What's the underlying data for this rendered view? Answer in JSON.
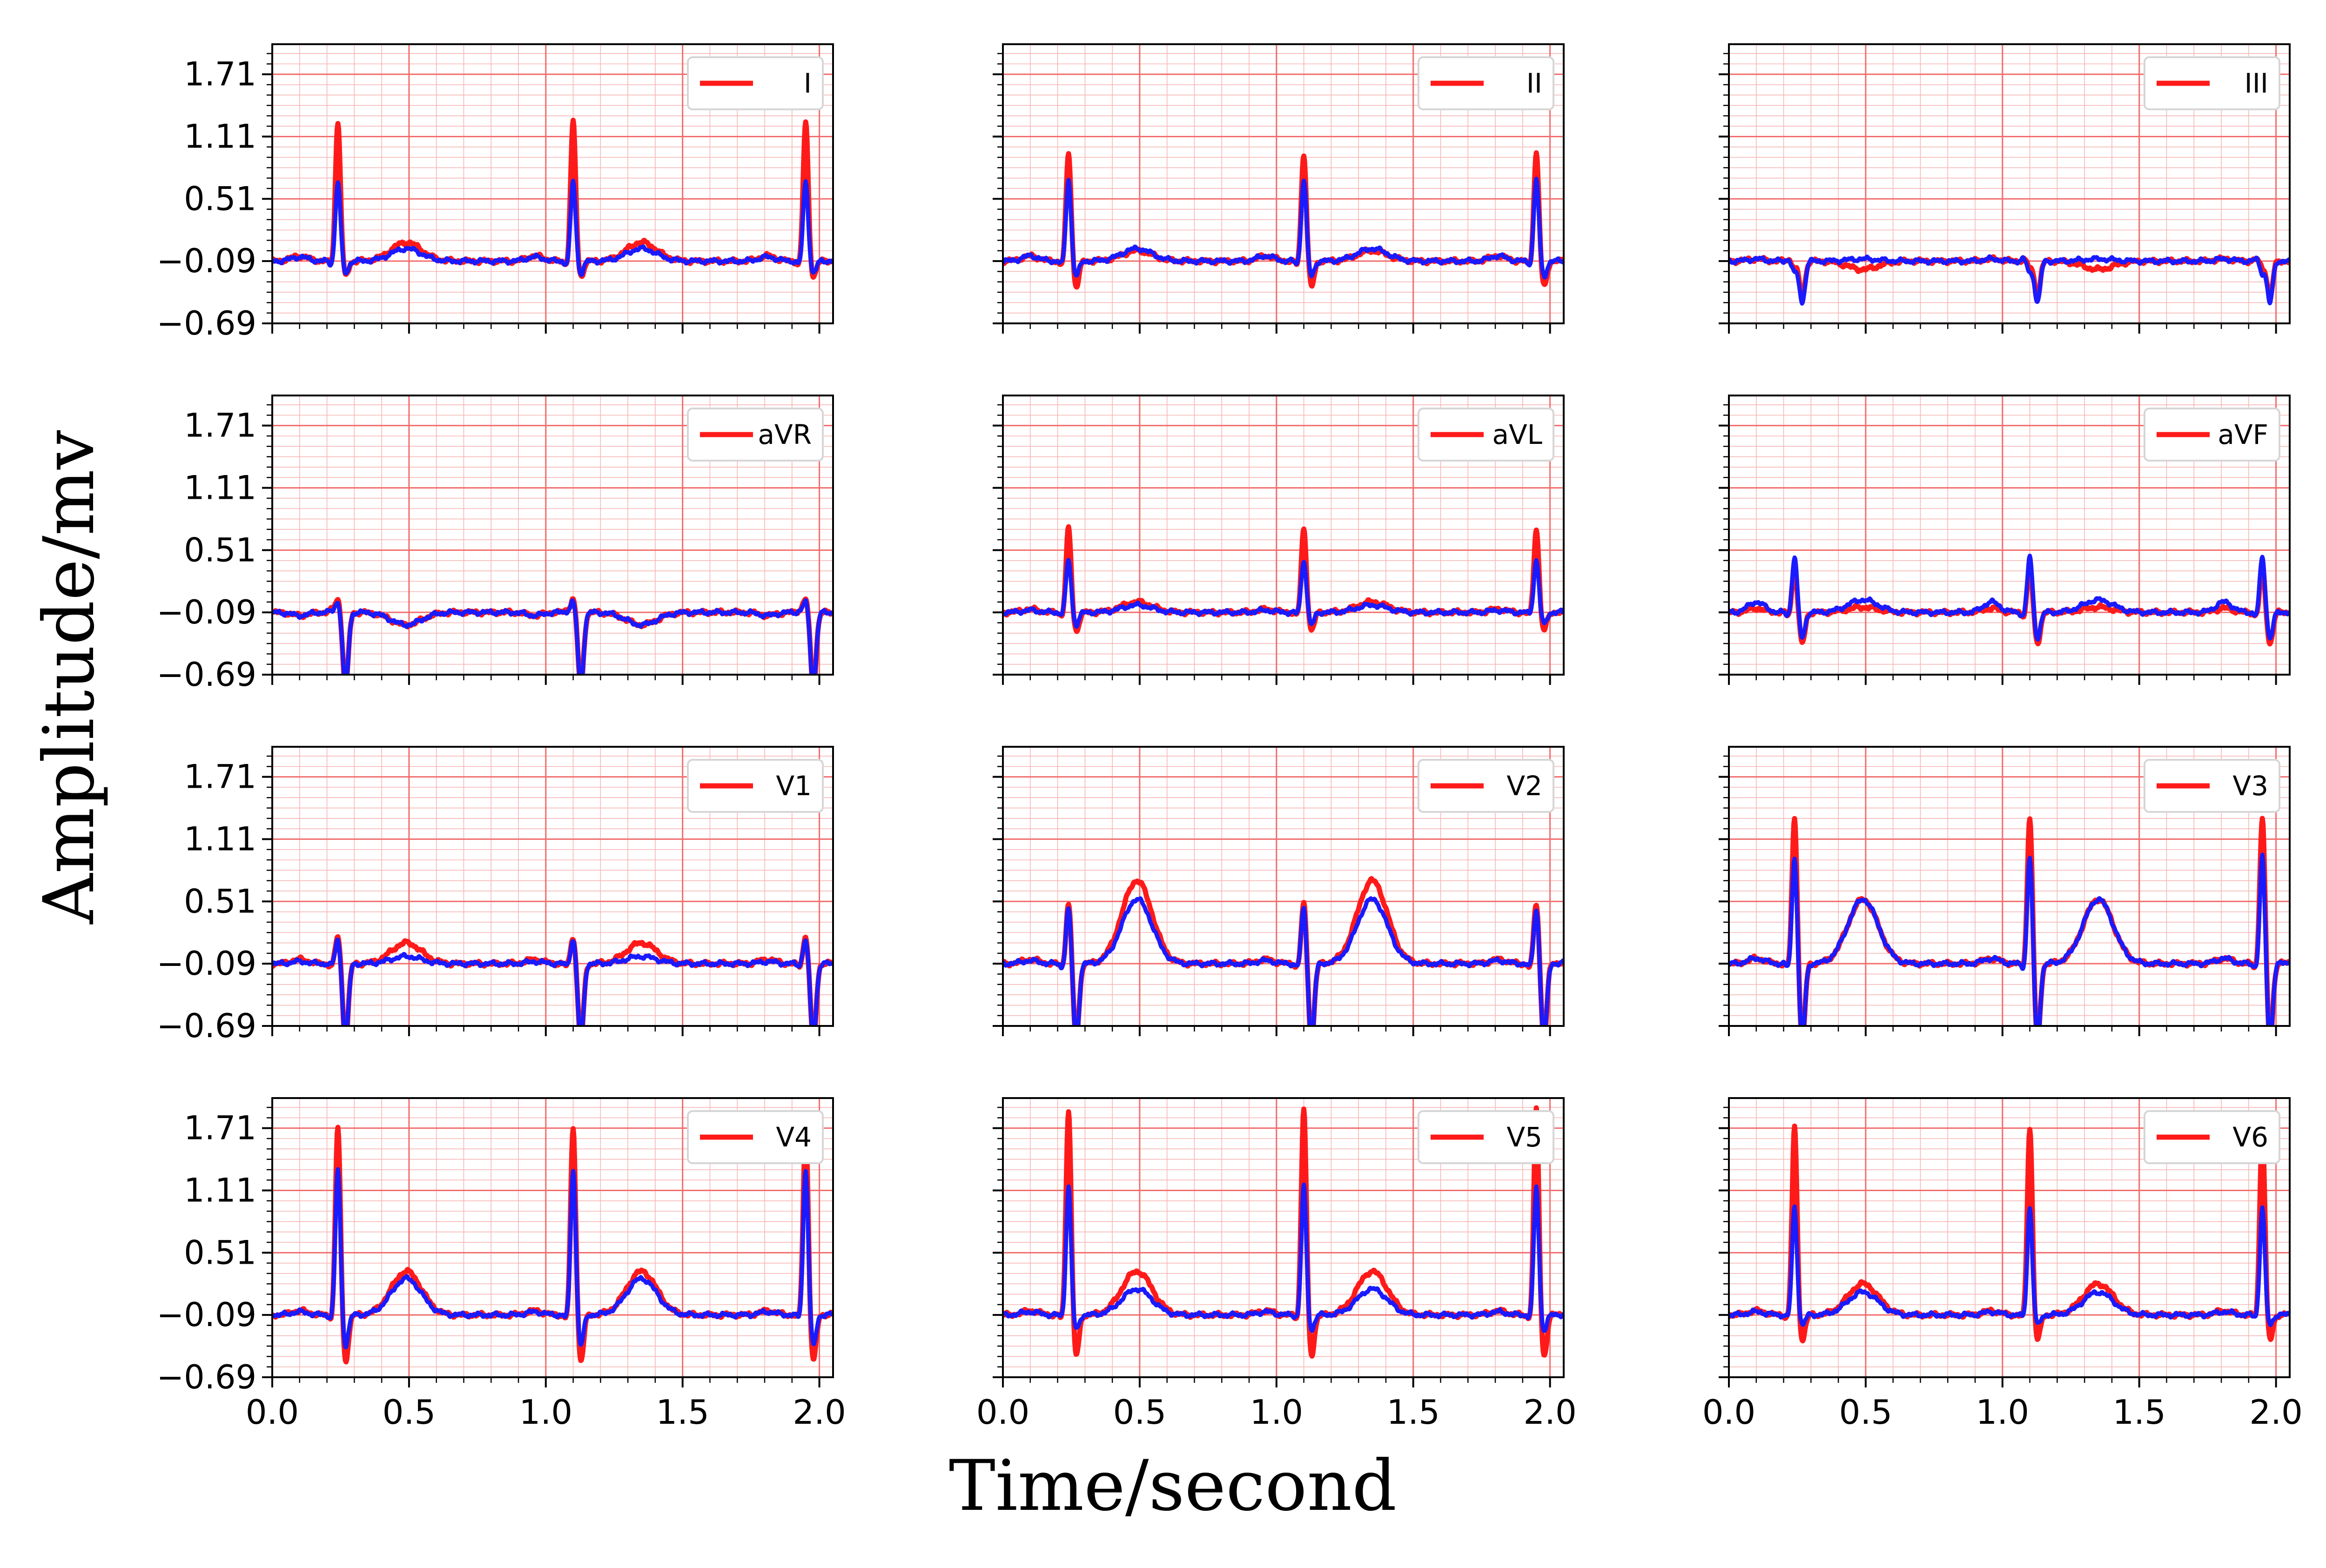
{
  "colors": {
    "reference": "#ff1a1a",
    "reconstruction": "#1a1aff",
    "grid_major": "#f26d6d",
    "grid_minor": "#f7b6b6"
  },
  "labels": {
    "xlabel": "Time/second",
    "ylabel": "Amplitude/mv"
  },
  "chart_data": {
    "type": "line",
    "layout": "4x3 small multiples",
    "xlim": [
      0,
      2.05
    ],
    "ylim": [
      -0.69,
      2.0
    ],
    "xticks": [
      0.0,
      0.5,
      1.0,
      1.5,
      2.0
    ],
    "xtick_labels": [
      "0.0",
      "0.5",
      "1.0",
      "1.5",
      "2.0"
    ],
    "yticks": [
      -0.69,
      -0.09,
      0.51,
      1.11,
      1.71
    ],
    "ytick_labels": [
      "−0.69",
      "−0.09",
      "0.51",
      "1.11",
      "1.71"
    ],
    "beat_times": [
      0.24,
      1.1,
      1.95
    ],
    "xlabel": "Time/second",
    "ylabel": "Amplitude/mv",
    "grid": true,
    "legend_placement": "upper right",
    "panels": [
      {
        "lead": "I",
        "legend": "I",
        "red": {
          "r": 1.25,
          "q": -0.05,
          "s": -0.15,
          "t": 0.18,
          "p": 0.05
        },
        "blue": {
          "r": 0.68,
          "q": -0.04,
          "s": -0.12,
          "t": 0.12,
          "p": 0.04
        }
      },
      {
        "lead": "II",
        "legend": "II",
        "red": {
          "r": 0.95,
          "q": -0.05,
          "s": -0.25,
          "t": 0.1,
          "p": 0.05
        },
        "blue": {
          "r": 0.7,
          "q": -0.04,
          "s": -0.15,
          "t": 0.12,
          "p": 0.05
        }
      },
      {
        "lead": "III",
        "legend": "III",
        "red": {
          "r": -0.15,
          "q": 0.02,
          "s": -0.35,
          "t": -0.08,
          "p": 0.02
        },
        "blue": {
          "r": -0.2,
          "q": 0.02,
          "s": -0.4,
          "t": 0.02,
          "p": 0.02
        }
      },
      {
        "lead": "aVR",
        "legend": "aVR",
        "red": {
          "r": 0.05,
          "q": 0.02,
          "s": -0.72,
          "t": -0.12,
          "p": -0.03
        },
        "blue": {
          "r": 0.02,
          "q": 0.01,
          "s": -0.72,
          "t": -0.12,
          "p": -0.03
        }
      },
      {
        "lead": "aVL",
        "legend": "aVL",
        "red": {
          "r": 0.72,
          "q": -0.04,
          "s": -0.18,
          "t": 0.1,
          "p": 0.03
        },
        "blue": {
          "r": 0.42,
          "q": -0.02,
          "s": -0.12,
          "t": 0.07,
          "p": 0.02
        }
      },
      {
        "lead": "aVF",
        "legend": "aVF",
        "red": {
          "r": 0.35,
          "q": -0.04,
          "s": -0.3,
          "t": 0.05,
          "p": 0.04
        },
        "blue": {
          "r": 0.45,
          "q": -0.04,
          "s": -0.25,
          "t": 0.12,
          "p": 0.1
        }
      },
      {
        "lead": "V1",
        "legend": "V1",
        "red": {
          "r": 0.18,
          "q": -0.03,
          "s": -0.75,
          "t": 0.2,
          "p": 0.04
        },
        "blue": {
          "r": 0.15,
          "q": -0.02,
          "s": -0.75,
          "t": 0.07,
          "p": 0.02
        }
      },
      {
        "lead": "V2",
        "legend": "V2",
        "red": {
          "r": 0.5,
          "q": -0.04,
          "s": -0.75,
          "t": 0.8,
          "p": 0.04
        },
        "blue": {
          "r": 0.45,
          "q": -0.04,
          "s": -0.75,
          "t": 0.62,
          "p": 0.03
        }
      },
      {
        "lead": "V3",
        "legend": "V3",
        "red": {
          "r": 1.32,
          "q": -0.05,
          "s": -0.75,
          "t": 0.62,
          "p": 0.05
        },
        "blue": {
          "r": 0.95,
          "q": -0.05,
          "s": -0.75,
          "t": 0.62,
          "p": 0.05
        }
      },
      {
        "lead": "V4",
        "legend": "V4",
        "red": {
          "r": 1.72,
          "q": -0.05,
          "s": -0.45,
          "t": 0.42,
          "p": 0.04
        },
        "blue": {
          "r": 1.32,
          "q": -0.04,
          "s": -0.3,
          "t": 0.35,
          "p": 0.03
        }
      },
      {
        "lead": "V5",
        "legend": "V5",
        "red": {
          "r": 1.9,
          "q": -0.05,
          "s": -0.4,
          "t": 0.42,
          "p": 0.04
        },
        "blue": {
          "r": 1.15,
          "q": -0.03,
          "s": -0.15,
          "t": 0.25,
          "p": 0.03
        }
      },
      {
        "lead": "V6",
        "legend": "V6",
        "red": {
          "r": 1.72,
          "q": -0.04,
          "s": -0.25,
          "t": 0.3,
          "p": 0.04
        },
        "blue": {
          "r": 0.95,
          "q": -0.03,
          "s": -0.1,
          "t": 0.22,
          "p": 0.03
        }
      }
    ]
  }
}
